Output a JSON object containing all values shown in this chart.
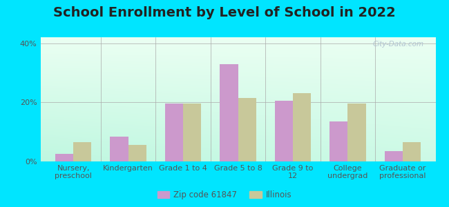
{
  "title": "School Enrollment by Level of School in 2022",
  "categories": [
    "Nursery,\npreschool",
    "Kindergarten",
    "Grade 1 to 4",
    "Grade 5 to 8",
    "Grade 9 to\n12",
    "College\nundergrad",
    "Graduate or\nprofessional"
  ],
  "zip_values": [
    2.5,
    8.5,
    19.5,
    33.0,
    20.5,
    13.5,
    3.5
  ],
  "illinois_values": [
    6.5,
    5.5,
    19.5,
    21.5,
    23.0,
    19.5,
    6.5
  ],
  "zip_color": "#cc99cc",
  "illinois_color": "#c8c89a",
  "zip_label": "Zip code 61847",
  "illinois_label": "Illinois",
  "ylim": [
    0,
    42
  ],
  "yticks": [
    0,
    20,
    40
  ],
  "ytick_labels": [
    "0%",
    "20%",
    "40%"
  ],
  "background_outer": "#00e5ff",
  "watermark": "City-Data.com",
  "title_fontsize": 14,
  "tick_fontsize": 8
}
